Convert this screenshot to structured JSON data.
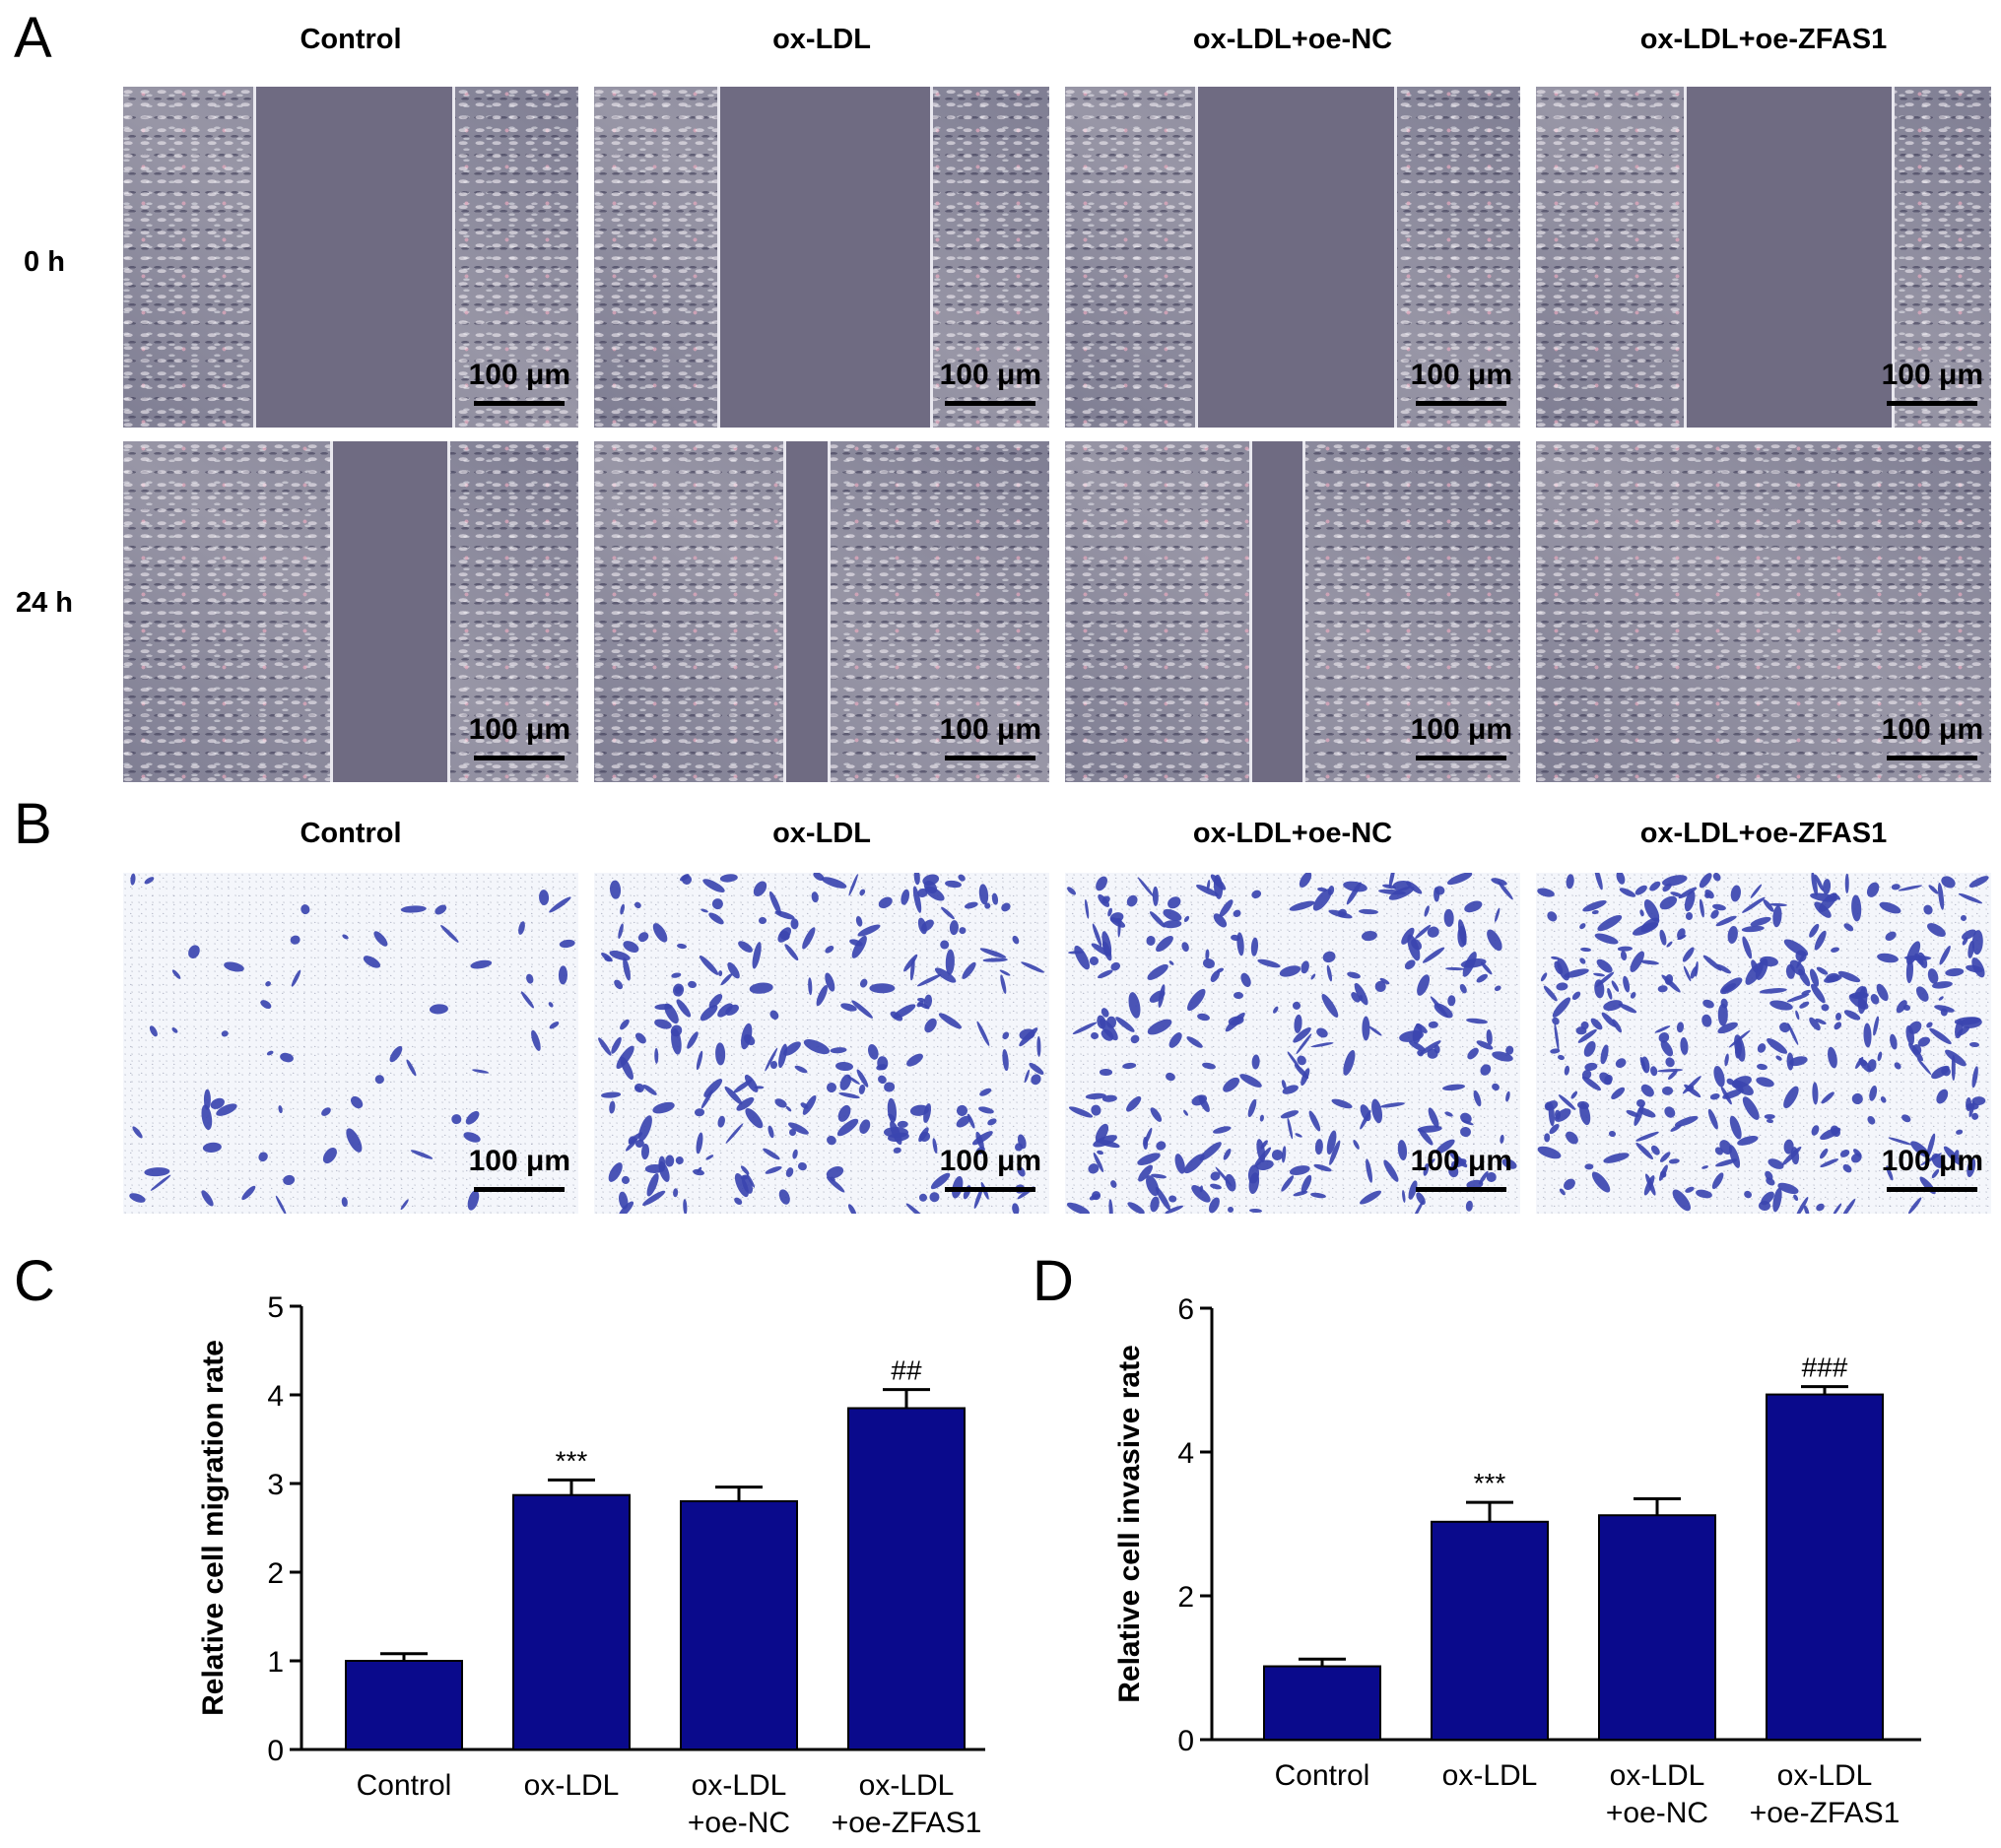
{
  "panels": {
    "a": "A",
    "b": "B",
    "c": "C",
    "d": "D"
  },
  "panel_a": {
    "columns": [
      "Control",
      "ox-LDL",
      "ox-LDL+oe-NC",
      "ox-LDL+oe-ZFAS1"
    ],
    "rows": [
      "0 h",
      "24 h"
    ],
    "scale_label": "100 μm",
    "gap_fraction": {
      "0h": [
        0.43,
        0.46,
        0.43,
        0.45
      ],
      "24h": [
        0.25,
        0.09,
        0.11,
        0.0
      ]
    }
  },
  "panel_b": {
    "columns": [
      "Control",
      "ox-LDL",
      "ox-LDL+oe-NC",
      "ox-LDL+oe-ZFAS1"
    ],
    "scale_label": "100 μm",
    "stain_density": [
      0.15,
      0.6,
      0.65,
      0.85
    ]
  },
  "chart_data": [
    {
      "type": "bar",
      "categories": [
        [
          "Control"
        ],
        [
          "ox-LDL"
        ],
        [
          "ox-LDL",
          "+oe-NC"
        ],
        [
          "ox-LDL",
          "+oe-ZFAS1"
        ]
      ],
      "values": [
        1.0,
        2.87,
        2.8,
        3.85
      ],
      "errors": [
        0.08,
        0.17,
        0.16,
        0.21
      ],
      "annotations": [
        "",
        "***",
        "",
        "##"
      ],
      "ylabel": "Relative cell migration rate",
      "ylim": [
        0,
        5
      ],
      "yticks": [
        "0",
        "1",
        "2",
        "3",
        "4",
        "5"
      ],
      "ytick_values": [
        0,
        1,
        2,
        3,
        4,
        5
      ],
      "color": "#0a0a8c",
      "grid": false
    },
    {
      "type": "bar",
      "categories": [
        [
          "Control"
        ],
        [
          "ox-LDL"
        ],
        [
          "ox-LDL",
          "+oe-NC"
        ],
        [
          "ox-LDL",
          "+oe-ZFAS1"
        ]
      ],
      "values": [
        1.02,
        3.03,
        3.12,
        4.8
      ],
      "errors": [
        0.1,
        0.27,
        0.23,
        0.11
      ],
      "annotations": [
        "",
        "***",
        "",
        "###"
      ],
      "ylabel": "Relative cell invasive rate",
      "ylim": [
        0,
        6
      ],
      "yticks": [
        "0",
        "2",
        "4",
        "6"
      ],
      "ytick_values": [
        0,
        2,
        4,
        6
      ],
      "color": "#0a0a8c",
      "grid": false
    }
  ]
}
